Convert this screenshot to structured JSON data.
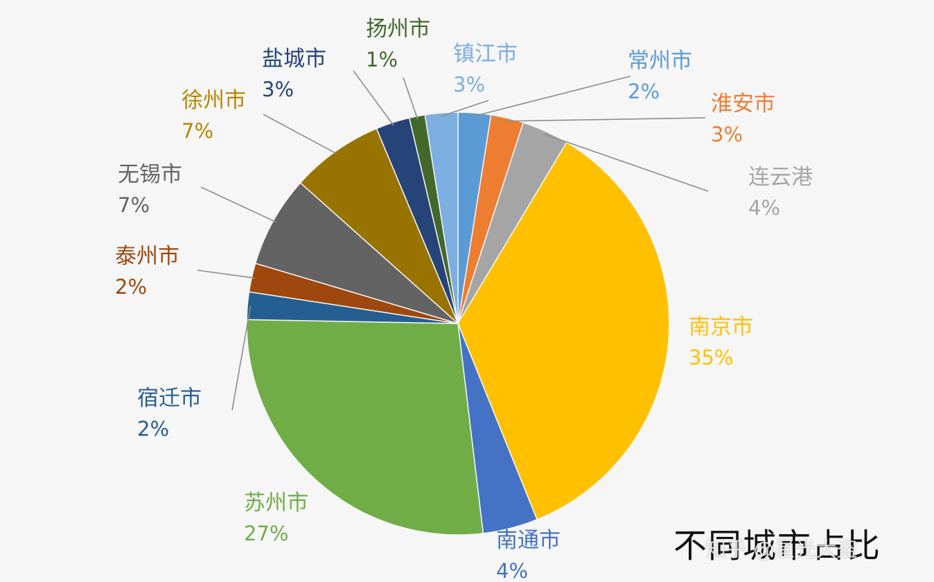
{
  "chart_data": {
    "type": "pie",
    "start_angle_deg": 0,
    "direction": "clockwise",
    "slices": [
      {
        "name": "常州市",
        "label": "2%",
        "value": 2.5,
        "color": "#5b9bd5"
      },
      {
        "name": "淮安市",
        "label": "3%",
        "value": 2.5,
        "color": "#ed7d31"
      },
      {
        "name": "连云港",
        "label": "4%",
        "value": 3.6,
        "color": "#a5a5a5"
      },
      {
        "name": "南京市",
        "label": "35%",
        "value": 35.3,
        "color": "#ffc000"
      },
      {
        "name": "南通市",
        "label": "4%",
        "value": 4.2,
        "color": "#4472c4"
      },
      {
        "name": "苏州市",
        "label": "27%",
        "value": 27.2,
        "color": "#70ad47"
      },
      {
        "name": "宿迁市",
        "label": "2%",
        "value": 2.1,
        "color": "#255e91"
      },
      {
        "name": "泰州市",
        "label": "2%",
        "value": 2.2,
        "color": "#9e480e"
      },
      {
        "name": "无锡市",
        "label": "7%",
        "value": 7.0,
        "color": "#636363"
      },
      {
        "name": "徐州市",
        "label": "7%",
        "value": 7.1,
        "color": "#997300"
      },
      {
        "name": "盐城市",
        "label": "3%",
        "value": 2.6,
        "color": "#264478"
      },
      {
        "name": "扬州市",
        "label": "1%",
        "value": 1.2,
        "color": "#43682b"
      },
      {
        "name": "镇江市",
        "label": "3%",
        "value": 2.5,
        "color": "#7caee0"
      }
    ],
    "label_colors": {
      "常州市": "#5b9bd5",
      "淮安市": "#ed7d31",
      "连云港": "#a5a5a5",
      "南京市": "#ffc000",
      "南通市": "#4472c4",
      "苏州市": "#70ad47",
      "宿迁市": "#255e91",
      "泰州市": "#9e480e",
      "无锡市": "#636363",
      "徐州市": "#b38600",
      "盐城市": "#264478",
      "扬州市": "#43682b",
      "镇江市": "#7caee0"
    }
  },
  "caption": "不同城市占比",
  "watermark": "知乎 @星光大盗"
}
